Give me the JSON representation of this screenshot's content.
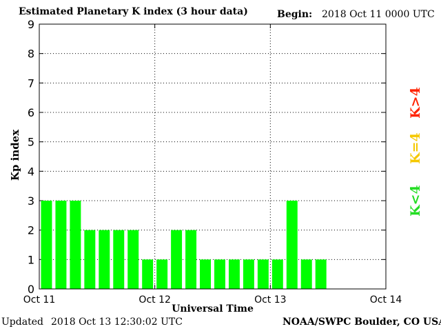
{
  "header": {
    "title": "Estimated Planetary K index (3 hour data)",
    "begin_label": "Begin:",
    "begin_value": "2018 Oct 11 0000 UTC"
  },
  "footer": {
    "updated_label": "Updated",
    "updated_value": "2018 Oct 13 12:30:02 UTC",
    "credit": "NOAA/SWPC Boulder, CO USA"
  },
  "legend": {
    "below": {
      "label": "K<4",
      "color": "#22dd22"
    },
    "equal": {
      "label": "K=4",
      "color": "#f5c800"
    },
    "above": {
      "label": "K>4",
      "color": "#ff2200"
    }
  },
  "chart_data": {
    "type": "bar",
    "title": "Estimated Planetary K index (3 hour data)",
    "xlabel": "Universal Time",
    "ylabel": "Kp index",
    "ylim": [
      0,
      9
    ],
    "yticks": [
      "0",
      "1",
      "2",
      "3",
      "4",
      "5",
      "6",
      "7",
      "8",
      "9"
    ],
    "xticks": [
      "Oct 11",
      "Oct 12",
      "Oct 13",
      "Oct 14"
    ],
    "bar_color": "#00ff00",
    "grid": true,
    "slots_per_day": 8,
    "values": [
      3,
      3,
      3,
      2,
      2,
      2,
      2,
      1,
      1,
      2,
      2,
      1,
      1,
      1,
      1,
      1,
      1,
      3,
      1,
      1
    ]
  }
}
